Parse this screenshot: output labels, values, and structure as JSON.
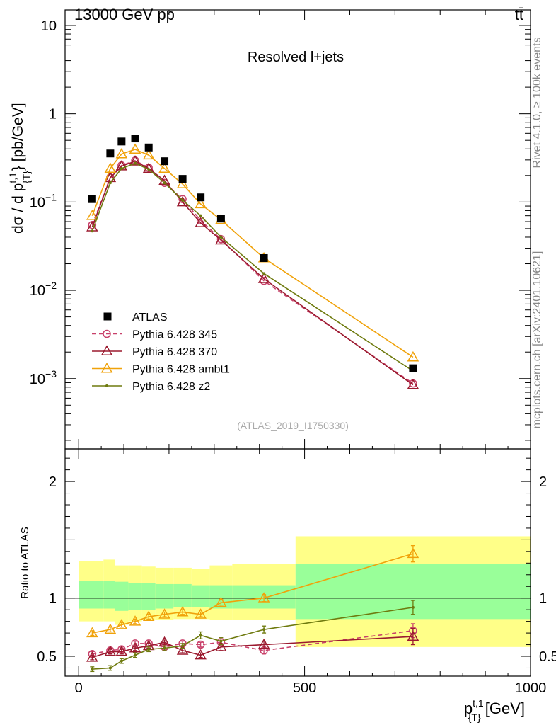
{
  "header": {
    "left": "13000 GeV pp",
    "right": "tt̄"
  },
  "side_labels": {
    "rivet": "Rivet 4.1.0, ≥ 100k events",
    "mcplots": "mcplots.cern.ch [arXiv:2401.10621]"
  },
  "chart_data": {
    "type": "line",
    "title": "Resolved l+jets",
    "analysis_label": "(ATLAS_2019_I1750330)",
    "xlabel": {
      "main": "p",
      "sup": "t,1",
      "sub": "{T}",
      "unit": " [GeV]"
    },
    "ylabel": {
      "prefix": "dσ / d p",
      "sup": "t,1",
      "sub": "{T}",
      "unit": "} [pb/GeV]"
    },
    "ratio_ylabel": "Ratio to ATLAS",
    "xlim": [
      -30,
      1000
    ],
    "ylim_log": [
      0.00016,
      15
    ],
    "ratio_ylim": [
      0.33,
      2.28
    ],
    "x_ticks": [
      0,
      500,
      1000
    ],
    "y_ticks": [
      {
        "value": 10,
        "label": "10"
      },
      {
        "value": 1,
        "label": "1"
      },
      {
        "value": 0.1,
        "label": "10",
        "exp": "−1"
      },
      {
        "value": 0.01,
        "label": "10",
        "exp": "−2"
      },
      {
        "value": 0.001,
        "label": "10",
        "exp": "−3"
      }
    ],
    "ratio_ticks": [
      {
        "value": 2,
        "label": "2"
      },
      {
        "value": 1,
        "label": "1"
      },
      {
        "value": 0.5,
        "label": "0.5"
      }
    ],
    "bins": [
      [
        0,
        55
      ],
      [
        55,
        80
      ],
      [
        80,
        110
      ],
      [
        110,
        140
      ],
      [
        140,
        170
      ],
      [
        170,
        210
      ],
      [
        210,
        250
      ],
      [
        250,
        290
      ],
      [
        290,
        340
      ],
      [
        340,
        480
      ],
      [
        480,
        1000
      ]
    ],
    "x": [
      30,
      70,
      95,
      125,
      155,
      190,
      230,
      270,
      315,
      410,
      740
    ],
    "atlas": [
      0.108,
      0.355,
      0.485,
      0.525,
      0.415,
      0.29,
      0.183,
      0.113,
      0.065,
      0.0232,
      0.00131
    ],
    "band_stat": [
      [
        0.91,
        1.15
      ],
      [
        0.91,
        1.15
      ],
      [
        0.89,
        1.14
      ],
      [
        0.9,
        1.13
      ],
      [
        0.9,
        1.13
      ],
      [
        0.91,
        1.12
      ],
      [
        0.92,
        1.12
      ],
      [
        0.92,
        1.11
      ],
      [
        0.91,
        1.11
      ],
      [
        0.91,
        1.11
      ],
      [
        0.82,
        1.29
      ]
    ],
    "band_total": [
      [
        0.8,
        1.32
      ],
      [
        0.8,
        1.33
      ],
      [
        0.77,
        1.28
      ],
      [
        0.8,
        1.28
      ],
      [
        0.81,
        1.27
      ],
      [
        0.81,
        1.26
      ],
      [
        0.82,
        1.26
      ],
      [
        0.82,
        1.25
      ],
      [
        0.81,
        1.28
      ],
      [
        0.81,
        1.29
      ],
      [
        0.58,
        1.53
      ]
    ],
    "series": [
      {
        "name": "Pythia 6.428 345",
        "color": "#c8406a",
        "marker": "circle",
        "dashed": true,
        "values": [
          0.055,
          0.19,
          0.26,
          0.295,
          0.245,
          0.165,
          0.108,
          0.062,
          0.038,
          0.0128,
          0.00088
        ],
        "ratio": [
          0.52,
          0.55,
          0.56,
          0.61,
          0.61,
          0.58,
          0.61,
          0.6,
          0.62,
          0.55,
          0.72
        ],
        "ratio_err": [
          0.02,
          0.02,
          0.02,
          0.02,
          0.02,
          0.02,
          0.02,
          0.02,
          0.03,
          0.03,
          0.06
        ]
      },
      {
        "name": "Pythia 6.428 370",
        "color": "#9b1a2f",
        "marker": "triangle-open",
        "dashed": false,
        "values": [
          0.052,
          0.188,
          0.255,
          0.29,
          0.24,
          0.175,
          0.1,
          0.058,
          0.037,
          0.0135,
          0.00085
        ],
        "ratio": [
          0.49,
          0.54,
          0.54,
          0.57,
          0.59,
          0.62,
          0.55,
          0.51,
          0.58,
          0.6,
          0.67
        ],
        "ratio_err": [
          0.02,
          0.02,
          0.02,
          0.02,
          0.02,
          0.02,
          0.02,
          0.02,
          0.03,
          0.03,
          0.07
        ]
      },
      {
        "name": "Pythia 6.428 ambt1",
        "color": "#f0a20a",
        "marker": "triangle-open",
        "dashed": false,
        "values": [
          0.07,
          0.24,
          0.35,
          0.395,
          0.34,
          0.24,
          0.16,
          0.095,
          0.063,
          0.0232,
          0.00175
        ],
        "ratio": [
          0.7,
          0.73,
          0.77,
          0.8,
          0.84,
          0.86,
          0.88,
          0.86,
          0.96,
          1.0,
          1.38
        ],
        "ratio_err": [
          0.02,
          0.02,
          0.02,
          0.02,
          0.02,
          0.02,
          0.02,
          0.02,
          0.03,
          0.03,
          0.07
        ]
      },
      {
        "name": "Pythia 6.428 z2",
        "color": "#6e7a0e",
        "marker": "dot",
        "dashed": false,
        "values": [
          0.047,
          0.165,
          0.24,
          0.275,
          0.235,
          0.165,
          0.105,
          0.07,
          0.04,
          0.0155,
          0.00122
        ],
        "ratio": [
          0.39,
          0.4,
          0.46,
          0.51,
          0.56,
          0.57,
          0.59,
          0.68,
          0.63,
          0.73,
          0.92
        ],
        "ratio_err": [
          0.02,
          0.02,
          0.02,
          0.02,
          0.02,
          0.02,
          0.02,
          0.03,
          0.03,
          0.03,
          0.06
        ]
      }
    ],
    "legend": {
      "entries": [
        "ATLAS",
        "Pythia 6.428 345",
        "Pythia 6.428 370",
        "Pythia 6.428 ambt1",
        "Pythia 6.428 z2"
      ],
      "position": "bottom-left"
    }
  }
}
